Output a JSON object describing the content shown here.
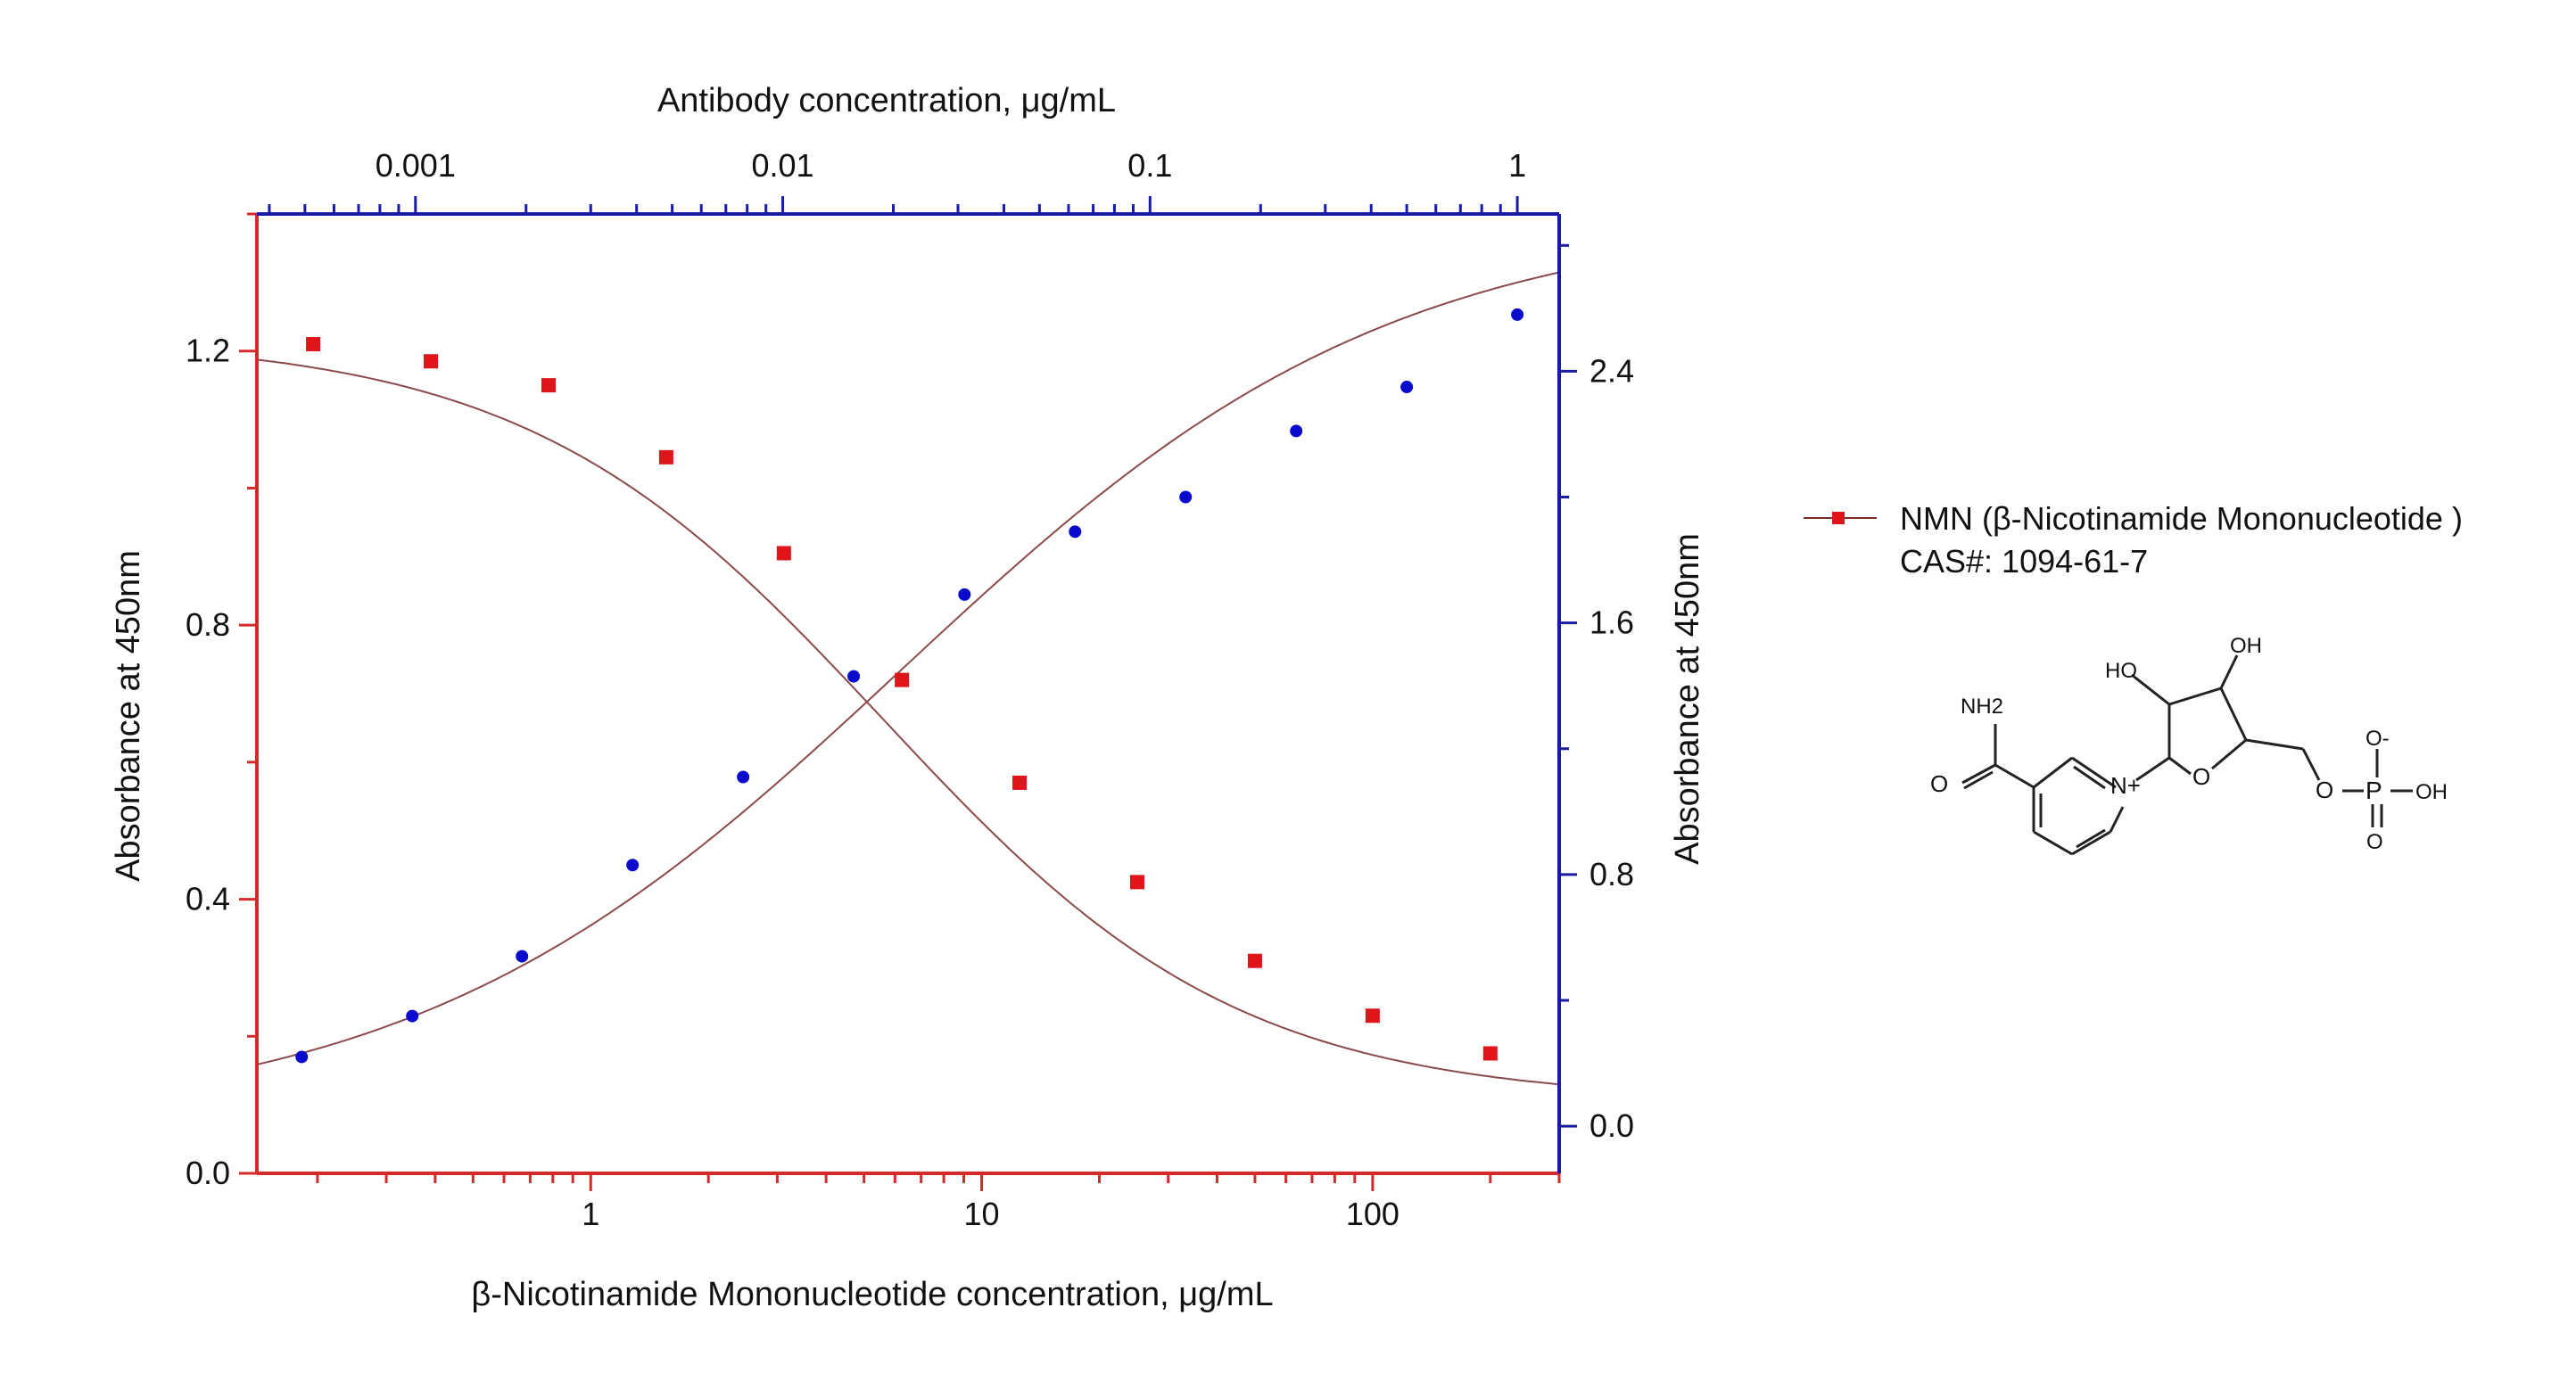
{
  "chart_data": {
    "type": "scatter",
    "title": "",
    "xlabel_bottom": "β-Nicotinamide Mononucleotide concentration, μg/mL",
    "xlabel_top": "Antibody concentration, μg/mL",
    "ylabel_left": "Absorbance at 450nm",
    "ylabel_right": "Absorbance at 450nm",
    "x_bottom_scale": "log",
    "x_top_scale": "log",
    "x_bottom_range": [
      0.14,
      300
    ],
    "x_top_range": [
      0.00037,
      1.3
    ],
    "y_left_range": [
      0,
      1.4
    ],
    "y_right_range": [
      -0.15,
      2.9
    ],
    "x_bottom_ticks": [
      "1",
      "10",
      "100"
    ],
    "x_top_ticks": [
      "0.001",
      "0.01",
      "0.1",
      "1"
    ],
    "y_left_ticks": [
      "0.0",
      "0.4",
      "0.8",
      "1.2"
    ],
    "y_right_ticks": [
      "0.0",
      "0.8",
      "1.6",
      "2.4"
    ],
    "grid": false,
    "legend_position": "right",
    "colors": {
      "left_axis": "#d42a2a",
      "right_axis": "#1a1aa8",
      "red_series": "#e0141b",
      "blue_series": "#0a0acc",
      "fit_curve": "#8a4a4a"
    },
    "series": [
      {
        "name": "NMN (β-Nicotinamide Mononucleotide )",
        "axis": "bottom-left",
        "marker": "square",
        "x": [
          0.195,
          0.39,
          0.78,
          1.56,
          3.12,
          6.25,
          12.5,
          25,
          50,
          100,
          200
        ],
        "y": [
          1.21,
          1.185,
          1.15,
          1.045,
          0.905,
          0.72,
          0.57,
          0.425,
          0.31,
          0.23,
          0.175
        ],
        "fit_bottom_asymptote": 0.105,
        "fit_top_asymptote": 1.22,
        "fit_ec50": 5.6,
        "fit_hill": 0.95
      },
      {
        "axis": "top-right",
        "marker": "circle",
        "x": [
          0.00049,
          0.00098,
          0.00195,
          0.0039,
          0.0078,
          0.0156,
          0.03125,
          0.0625,
          0.125,
          0.25,
          0.5,
          1
        ],
        "y": [
          0.22,
          0.35,
          0.54,
          0.83,
          1.11,
          1.43,
          1.69,
          1.89,
          2.0,
          2.21,
          2.35,
          2.58
        ],
        "fit_bottom_asymptote": 0.0,
        "fit_top_asymptote": 2.9,
        "fit_ec50": 0.021,
        "fit_hill": 0.65
      }
    ]
  },
  "legend": {
    "name": "NMN (β-Nicotinamide Mononucleotide )",
    "cas": "CAS#: 1094-61-7"
  },
  "molecule": {
    "labels": [
      "NH2",
      "O",
      "N+",
      "HO",
      "OH",
      "O",
      "O",
      "P",
      "OH",
      "O-",
      "O"
    ]
  }
}
